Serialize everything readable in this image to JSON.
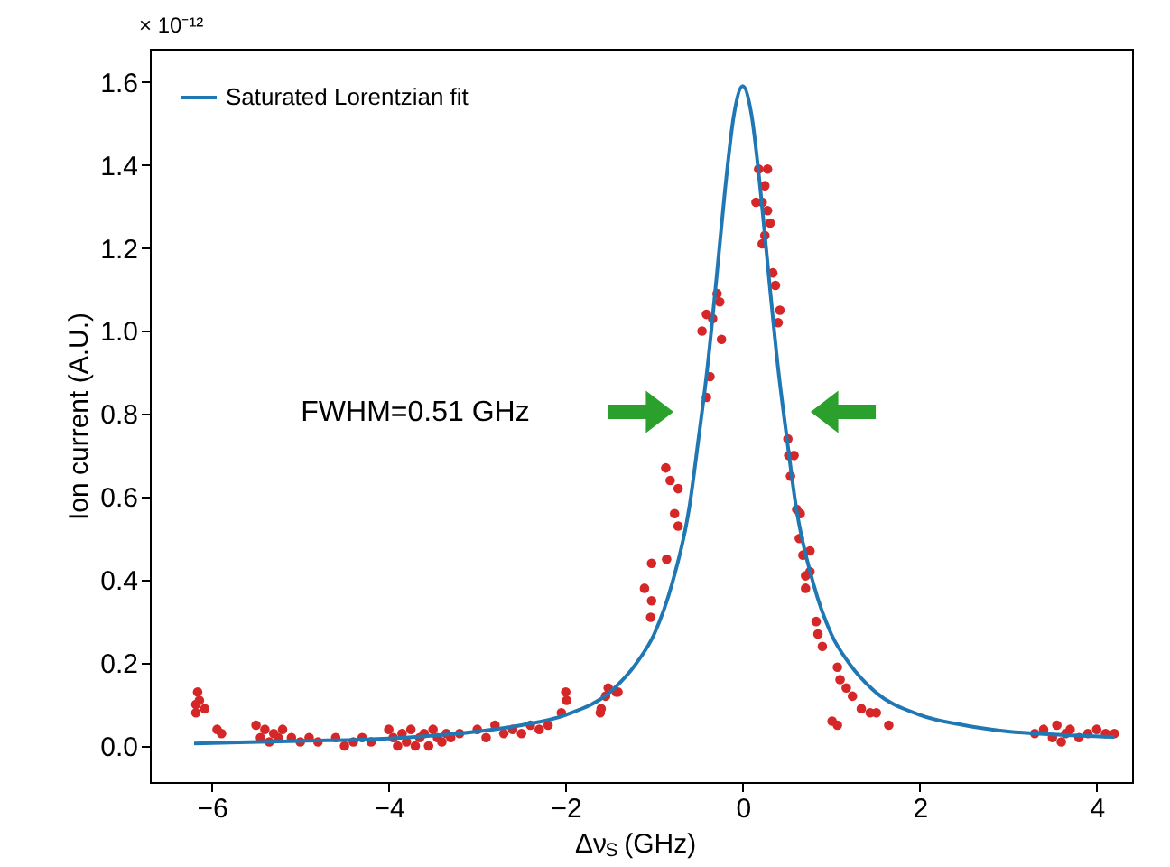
{
  "chart_data": {
    "type": "scatter",
    "xlabel": "Δν$_{S}$ (GHz)",
    "ylabel": "Ion current (A.U.)",
    "annotations": [
      "× 10⁻¹²",
      "FWHM=0.51 GHz"
    ],
    "xlim": [
      -6.7,
      4.4
    ],
    "ylim": [
      -0.087,
      1.68
    ],
    "xticks": [
      {
        "value": -6,
        "label": "−6"
      },
      {
        "value": -4,
        "label": "−4"
      },
      {
        "value": -2,
        "label": "−2"
      },
      0,
      2,
      4
    ],
    "yticks": [
      {
        "value": 0,
        "label": "0.0"
      },
      0.2,
      0.4,
      0.6,
      0.8,
      {
        "value": 1,
        "label": "1.0"
      },
      1.2,
      1.4,
      1.6
    ],
    "legend": "top left",
    "grid": false,
    "series": [
      {
        "marker": "circle",
        "color": "#d62728",
        "x": [
          -6.18,
          -6.16,
          -6.14,
          -6.08,
          -6.18,
          -5.94,
          -5.89,
          -5.5,
          -5.45,
          -5.4,
          -5.35,
          -5.3,
          -5.25,
          -5.2,
          -5.1,
          -5.0,
          -4.9,
          -4.8,
          -4.6,
          -4.5,
          -4.4,
          -4.3,
          -4.2,
          -4.0,
          -3.95,
          -3.9,
          -3.85,
          -3.8,
          -3.75,
          -3.7,
          -3.65,
          -3.6,
          -3.55,
          -3.5,
          -3.45,
          -3.4,
          -3.35,
          -3.3,
          -3.2,
          -3.0,
          -2.9,
          -2.8,
          -2.7,
          -2.6,
          -2.5,
          -2.4,
          -2.3,
          -2.2,
          -2.05,
          -2.0,
          -1.99,
          -1.61,
          -1.55,
          -1.43,
          -1.6,
          -1.52,
          -1.41,
          -1.11,
          -1.04,
          -1.03,
          -1.03,
          -0.87,
          -0.86,
          -0.82,
          -0.77,
          -0.73,
          -0.73,
          -0.41,
          -0.37,
          -0.46,
          -0.41,
          -0.34,
          -0.29,
          -0.26,
          -0.24,
          0.18,
          0.28,
          0.25,
          0.15,
          0.22,
          0.28,
          0.31,
          0.25,
          0.22,
          0.34,
          0.37,
          0.42,
          0.4,
          0.51,
          0.52,
          0.58,
          0.54,
          0.61,
          0.65,
          0.64,
          0.76,
          0.68,
          0.71,
          0.76,
          0.71,
          0.83,
          0.85,
          0.9,
          1.07,
          1.1,
          1.17,
          1.24,
          1.34,
          1.44,
          1.51,
          1.65,
          1.01,
          1.07,
          3.3,
          3.4,
          3.5,
          3.55,
          3.6,
          3.65,
          3.7,
          3.8,
          3.9,
          4.0,
          4.1,
          4.2
        ],
        "values": [
          0.08,
          0.13,
          0.11,
          0.09,
          0.1,
          0.04,
          0.03,
          0.05,
          0.02,
          0.04,
          0.01,
          0.03,
          0.02,
          0.04,
          0.02,
          0.01,
          0.02,
          0.01,
          0.02,
          0.0,
          0.01,
          0.02,
          0.01,
          0.04,
          0.02,
          0.0,
          0.03,
          0.01,
          0.04,
          0.0,
          0.02,
          0.03,
          0.0,
          0.04,
          0.02,
          0.01,
          0.03,
          0.02,
          0.03,
          0.04,
          0.02,
          0.05,
          0.03,
          0.04,
          0.03,
          0.05,
          0.04,
          0.05,
          0.08,
          0.13,
          0.11,
          0.08,
          0.12,
          0.13,
          0.09,
          0.14,
          0.13,
          0.38,
          0.31,
          0.35,
          0.44,
          0.67,
          0.45,
          0.64,
          0.56,
          0.62,
          0.53,
          0.84,
          0.89,
          1.0,
          1.04,
          1.03,
          1.09,
          1.07,
          0.98,
          1.39,
          1.39,
          1.35,
          1.31,
          1.31,
          1.29,
          1.26,
          1.23,
          1.21,
          1.14,
          1.11,
          1.05,
          1.02,
          0.74,
          0.7,
          0.7,
          0.65,
          0.57,
          0.56,
          0.5,
          0.47,
          0.46,
          0.41,
          0.42,
          0.38,
          0.3,
          0.27,
          0.24,
          0.19,
          0.16,
          0.14,
          0.12,
          0.09,
          0.08,
          0.08,
          0.05,
          0.06,
          0.05,
          0.03,
          0.04,
          0.02,
          0.05,
          0.01,
          0.03,
          0.04,
          0.02,
          0.03,
          0.04,
          0.03,
          0.03
        ]
      },
      {
        "type": "line",
        "marker": "none",
        "line_style": "solid",
        "name": "Saturated Lorentzian fit",
        "color": "#1f77b4",
        "x": [
          -6.2,
          -5,
          -4,
          -3,
          -2.5,
          -2,
          -1.5,
          -1.2,
          -1.0,
          -0.8,
          -0.6,
          -0.5,
          -0.4,
          -0.3,
          -0.2,
          -0.1,
          0,
          0.1,
          0.2,
          0.3,
          0.4,
          0.5,
          0.6,
          0.8,
          1.0,
          1.2,
          1.5,
          2,
          2.5,
          3,
          3.5,
          4.2
        ],
        "values": [
          0.006,
          0.012,
          0.018,
          0.035,
          0.05,
          0.075,
          0.13,
          0.2,
          0.27,
          0.39,
          0.58,
          0.74,
          0.91,
          1.12,
          1.34,
          1.52,
          1.59,
          1.52,
          1.34,
          1.12,
          0.91,
          0.74,
          0.58,
          0.39,
          0.27,
          0.2,
          0.13,
          0.075,
          0.05,
          0.035,
          0.028,
          0.022
        ]
      }
    ]
  }
}
